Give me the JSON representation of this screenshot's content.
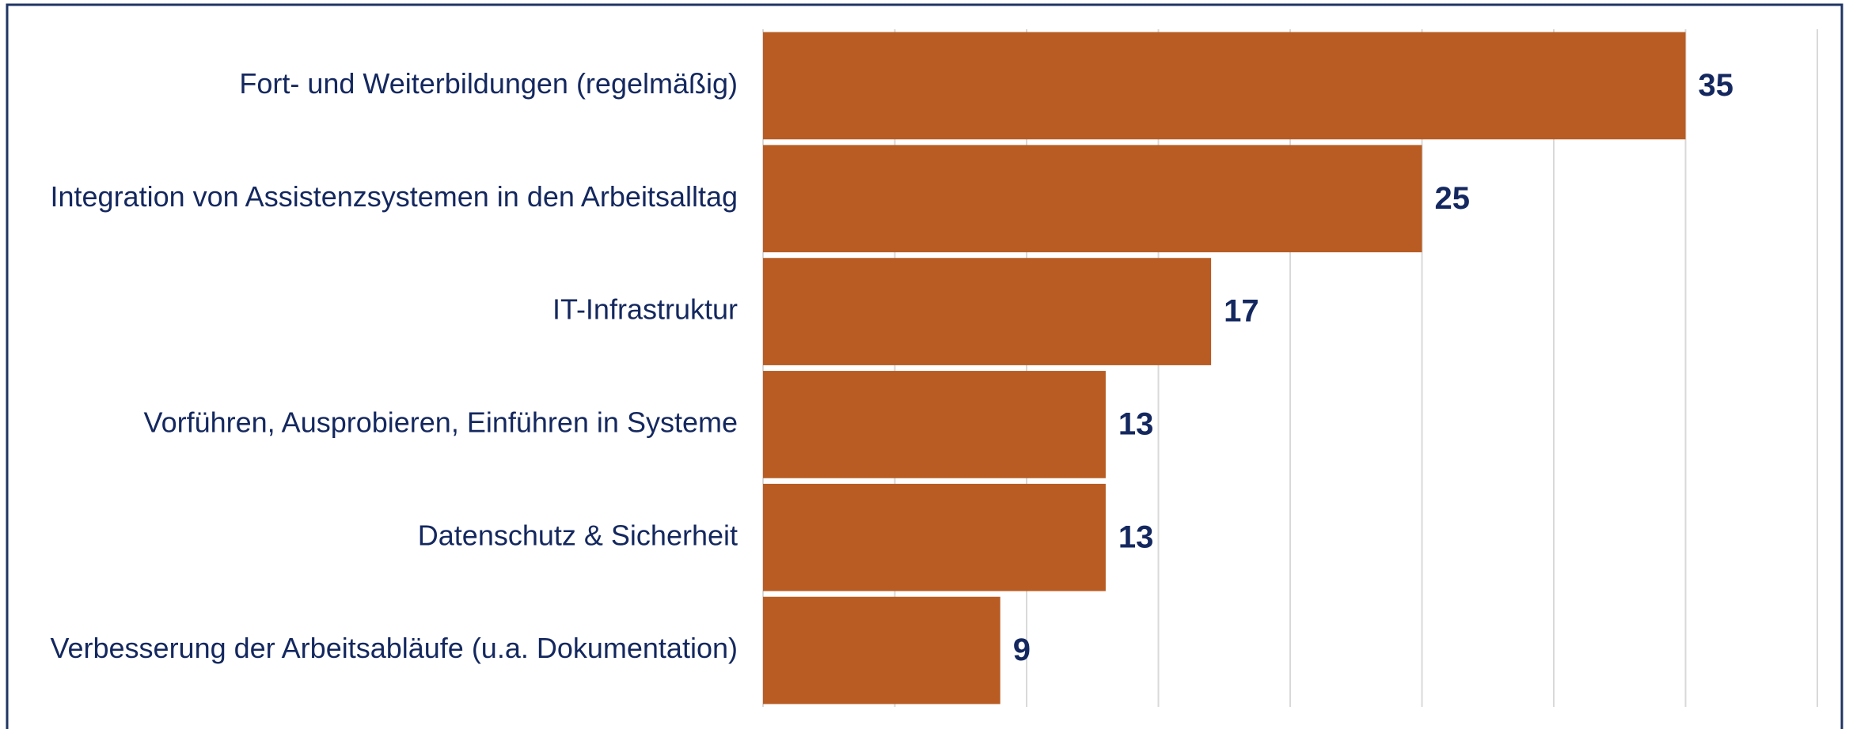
{
  "chart_data": {
    "type": "hbar",
    "categories": [
      "Fort- und Weiterbildungen (regelmäßig)",
      "Integration von Assistenzsystemen in den Arbeitsalltag",
      "IT-Infrastruktur",
      "Vorführen, Ausprobieren, Einführen in Systeme",
      "Datenschutz & Sicherheit",
      "Verbesserung der Arbeitsabläufe (u.a. Dokumentation)"
    ],
    "values": [
      35,
      25,
      17,
      13,
      13,
      9
    ],
    "color": "#b85c23",
    "xlim": [
      0,
      40
    ],
    "xticks": [
      0,
      5,
      10,
      15,
      20,
      25,
      30,
      35,
      40
    ],
    "grid": true
  }
}
